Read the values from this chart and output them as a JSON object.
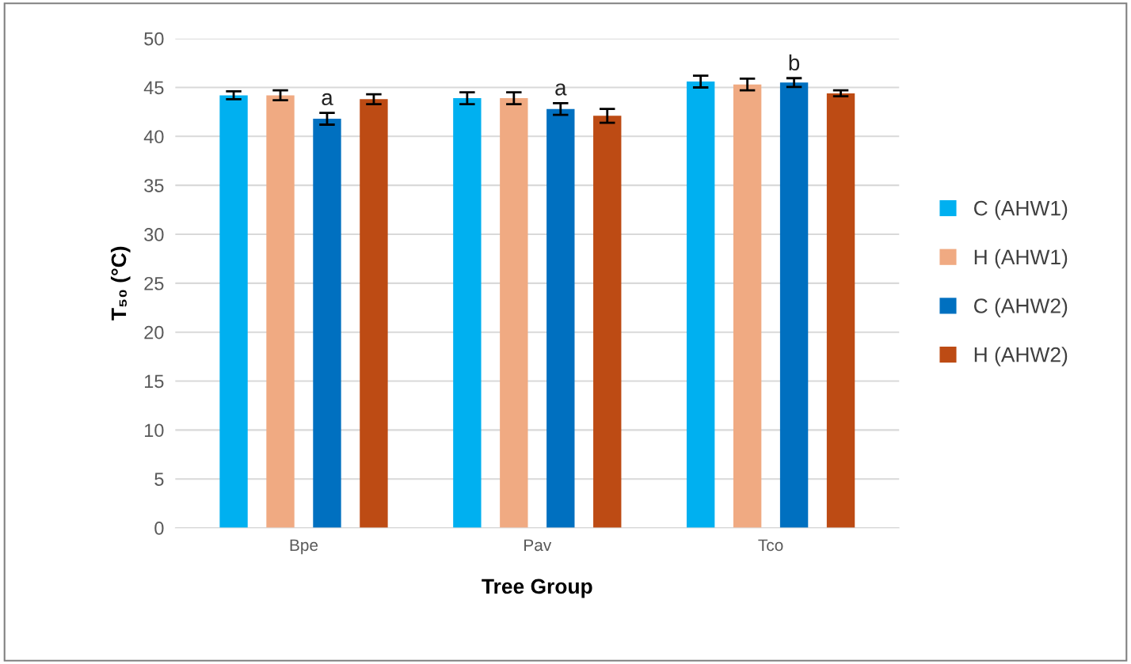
{
  "chart_data": {
    "type": "bar",
    "xlabel": "Tree Group",
    "ylabel": "T₅₀ (°C)",
    "categories": [
      "Bpe",
      "Pav",
      "Tco"
    ],
    "series": [
      {
        "name": "C (AHW1)",
        "color": "#00b0f0",
        "values": [
          44.2,
          43.9,
          45.6
        ],
        "errors": [
          0.4,
          0.6,
          0.6
        ]
      },
      {
        "name": "H (AHW1)",
        "color": "#f0aa82",
        "values": [
          44.2,
          43.9,
          45.3
        ],
        "errors": [
          0.5,
          0.6,
          0.6
        ]
      },
      {
        "name": "C (AHW2)",
        "color": "#0070c0",
        "values": [
          41.8,
          42.8,
          45.5
        ],
        "errors": [
          0.6,
          0.6,
          0.45
        ]
      },
      {
        "name": "H (AHW2)",
        "color": "#bd4b14",
        "values": [
          43.8,
          42.1,
          44.4
        ],
        "errors": [
          0.5,
          0.7,
          0.3
        ]
      }
    ],
    "annotations": [
      "a",
      "a",
      "b"
    ],
    "ylim": [
      0,
      50
    ],
    "yticks": [
      0,
      5,
      10,
      15,
      20,
      25,
      30,
      35,
      40,
      45,
      50
    ],
    "grid": "y",
    "legend": "right"
  }
}
